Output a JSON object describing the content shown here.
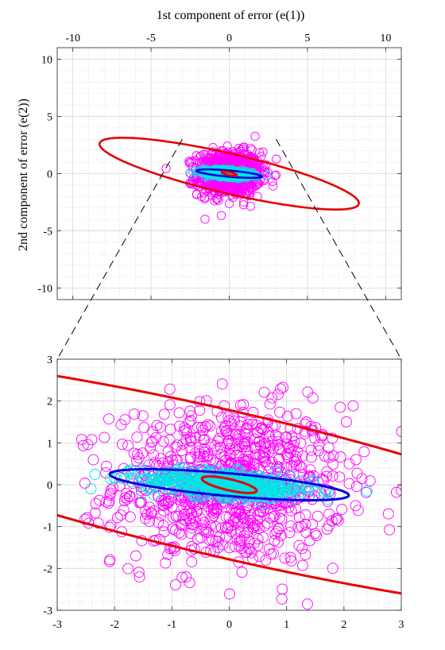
{
  "chart_data": [
    {
      "type": "scatter",
      "title": "",
      "xlabel": "1st component of error (e(1))",
      "ylabel": "2nd component of error (e(2))",
      "xlim": [
        -11,
        11
      ],
      "ylim": [
        -11,
        11
      ],
      "xaxis_location": "top",
      "xticks": [
        -10,
        -5,
        0,
        5,
        10
      ],
      "yticks": [
        -10,
        -5,
        0,
        5,
        10
      ],
      "xtick_labels": [
        "-10",
        "-5",
        "0",
        "5",
        "10"
      ],
      "ytick_labels": [
        "-10",
        "-5",
        "0",
        "5",
        "10"
      ],
      "grid": true,
      "minor_grid": true,
      "colors": {
        "scatter_wide": "#ff00ff",
        "scatter_narrow": "#00e5e5",
        "ellipse_large": "#e60000",
        "ellipse_mid": "#0000e0",
        "ellipse_small": "#e60000"
      },
      "series": [
        {
          "kind": "points",
          "color": "magenta",
          "distribution": {
            "mean": [
              0,
              0
            ],
            "std": [
              1.0,
              0.95
            ],
            "n": 900
          }
        },
        {
          "kind": "points",
          "color": "cyan",
          "distribution": {
            "mean": [
              0,
              0
            ],
            "std": [
              0.75,
              0.15
            ],
            "n": 500,
            "slope": -0.09
          }
        },
        {
          "kind": "ellipse",
          "color": "red",
          "center": [
            0,
            0
          ],
          "semi_axes": [
            8.7,
            1.7
          ],
          "angle_deg": -18
        },
        {
          "kind": "ellipse",
          "color": "blue",
          "center": [
            0,
            0
          ],
          "semi_axes": [
            2.1,
            0.27
          ],
          "angle_deg": -7
        },
        {
          "kind": "ellipse",
          "color": "red",
          "center": [
            0,
            0
          ],
          "semi_axes": [
            0.5,
            0.13
          ],
          "angle_deg": -18
        }
      ]
    },
    {
      "type": "scatter",
      "title": "",
      "xlabel": "",
      "ylabel": "",
      "xlim": [
        -3,
        3
      ],
      "ylim": [
        -3,
        3
      ],
      "xticks": [
        -3,
        -2,
        -1,
        0,
        1,
        2,
        3
      ],
      "yticks": [
        -3,
        -2,
        -1,
        0,
        1,
        2,
        3
      ],
      "xtick_labels": [
        "-3",
        "-2",
        "-1",
        "0",
        "1",
        "2",
        "3"
      ],
      "ytick_labels": [
        "-3",
        "-2",
        "-1",
        "0",
        "1",
        "2",
        "3"
      ],
      "grid": true,
      "minor_grid": true,
      "zoom_of": "first chart, region [-3, 3] x [-3, 3]",
      "series": [
        {
          "kind": "points",
          "color": "magenta",
          "distribution": {
            "mean": [
              0,
              0
            ],
            "std": [
              1.0,
              0.95
            ],
            "n": 900
          }
        },
        {
          "kind": "points",
          "color": "cyan",
          "distribution": {
            "mean": [
              0,
              0
            ],
            "std": [
              0.75,
              0.15
            ],
            "n": 500,
            "slope": -0.09
          }
        },
        {
          "kind": "ellipse",
          "color": "red",
          "center": [
            0,
            0
          ],
          "semi_axes": [
            8.7,
            1.7
          ],
          "angle_deg": -18
        },
        {
          "kind": "ellipse",
          "color": "blue",
          "center": [
            0,
            0
          ],
          "semi_axes": [
            2.1,
            0.27
          ],
          "angle_deg": -7
        },
        {
          "kind": "ellipse",
          "color": "red",
          "center": [
            0,
            0
          ],
          "semi_axes": [
            0.5,
            0.13
          ],
          "angle_deg": -18
        }
      ]
    }
  ]
}
